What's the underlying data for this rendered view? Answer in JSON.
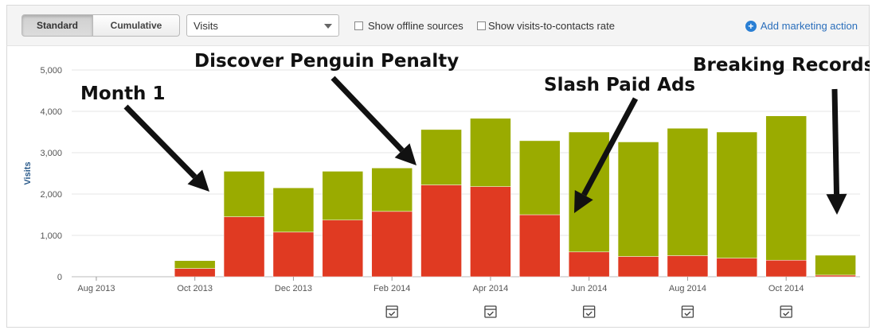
{
  "toolbar": {
    "standard_label": "Standard",
    "cumulative_label": "Cumulative",
    "metric_select_value": "Visits",
    "offline_label": "Show offline sources",
    "rate_label": "Show visits-to-contacts rate",
    "add_action_label": "Add marketing action"
  },
  "chart_data": {
    "type": "bar",
    "stacked": true,
    "ylabel": "Visits",
    "ylim": [
      0,
      5000
    ],
    "yticks": [
      0,
      1000,
      2000,
      3000,
      4000,
      5000
    ],
    "ytick_labels": [
      "0",
      "1,000",
      "2,000",
      "3,000",
      "4,000",
      "5,000"
    ],
    "categories": [
      "Aug 2013",
      "Sep 2013",
      "Oct 2013",
      "Nov 2013",
      "Dec 2013",
      "Jan 2014",
      "Feb 2014",
      "Mar 2014",
      "Apr 2014",
      "May 2014",
      "Jun 2014",
      "Jul 2014",
      "Aug 2014",
      "Sep 2014",
      "Oct 2014",
      "Nov 2014"
    ],
    "xtick_labels": [
      "Aug 2013",
      "",
      "Oct 2013",
      "",
      "Dec 2013",
      "",
      "Feb 2014",
      "",
      "Apr 2014",
      "",
      "Jun 2014",
      "",
      "Aug 2014",
      "",
      "Oct 2014",
      ""
    ],
    "series": [
      {
        "color": "#e03a22",
        "values": [
          0,
          0,
          200,
          1450,
          1080,
          1370,
          1580,
          2220,
          2180,
          1500,
          600,
          490,
          510,
          450,
          400,
          40
        ]
      },
      {
        "color": "#9aab00",
        "values": [
          0,
          0,
          190,
          1100,
          1070,
          1180,
          1050,
          1340,
          1650,
          1790,
          2900,
          2770,
          3080,
          3050,
          3490,
          480
        ]
      }
    ],
    "marker_icon": "calendar-check-icon",
    "marker_categories": [
      "Feb 2014",
      "Apr 2014",
      "Jun 2014",
      "Aug 2014",
      "Oct 2014"
    ],
    "annotations": [
      {
        "text": "Month 1",
        "category": "Nov 2013"
      },
      {
        "text": "Discover Penguin Penalty",
        "category": "Mar 2014"
      },
      {
        "text": "Slash Paid Ads",
        "category": "Jun 2014"
      },
      {
        "text": "Breaking Records",
        "category": "Nov 2014"
      }
    ],
    "grid": true,
    "legend": "none"
  }
}
